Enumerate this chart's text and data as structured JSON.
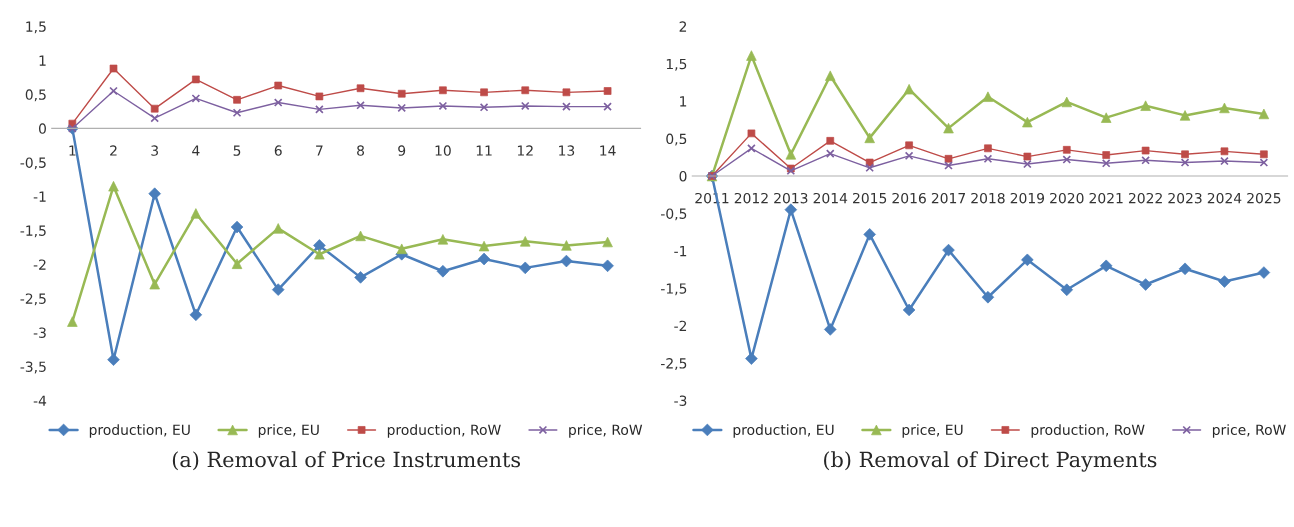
{
  "chart_data": [
    {
      "type": "line",
      "title": "(a) Removal of Price Instruments",
      "categories": [
        "1",
        "2",
        "3",
        "4",
        "5",
        "6",
        "7",
        "8",
        "9",
        "10",
        "11",
        "12",
        "13",
        "14"
      ],
      "ylim": [
        -4,
        1.5
      ],
      "yticks": [
        {
          "value": -4,
          "label": "-4"
        },
        {
          "value": -3.5,
          "label": "-3,5"
        },
        {
          "value": -3,
          "label": "-3"
        },
        {
          "value": -2.5,
          "label": "-2,5"
        },
        {
          "value": -2,
          "label": "-2"
        },
        {
          "value": -1.5,
          "label": "-1,5"
        },
        {
          "value": -1,
          "label": "-1"
        },
        {
          "value": -0.5,
          "label": "-0,5"
        },
        {
          "value": 0,
          "label": "0"
        },
        {
          "value": 0.5,
          "label": "0,5"
        },
        {
          "value": 1,
          "label": "1"
        },
        {
          "value": 1.5,
          "label": "1,5"
        }
      ],
      "grid": false,
      "legend": "bottom",
      "series": [
        {
          "name": "production, EU",
          "color": "#4a7ebb",
          "marker": "diamond",
          "values": [
            0,
            -3.4,
            -0.96,
            -2.74,
            -1.45,
            -2.37,
            -1.72,
            -2.19,
            -1.85,
            -2.1,
            -1.92,
            -2.05,
            -1.95,
            -2.02
          ]
        },
        {
          "name": "price, EU",
          "color": "#98b954",
          "marker": "triangle",
          "values": [
            -2.84,
            -0.85,
            -2.29,
            -1.25,
            -1.99,
            -1.47,
            -1.85,
            -1.58,
            -1.77,
            -1.63,
            -1.73,
            -1.66,
            -1.72,
            -1.67
          ]
        },
        {
          "name": "production, RoW",
          "color": "#be4b48",
          "marker": "square",
          "values": [
            0.07,
            0.88,
            0.29,
            0.72,
            0.42,
            0.63,
            0.47,
            0.59,
            0.51,
            0.56,
            0.53,
            0.56,
            0.53,
            0.55
          ]
        },
        {
          "name": "price, RoW",
          "color": "#7d60a0",
          "marker": "cross",
          "values": [
            0.0,
            0.55,
            0.15,
            0.44,
            0.23,
            0.38,
            0.28,
            0.34,
            0.3,
            0.33,
            0.31,
            0.33,
            0.32,
            0.32
          ]
        }
      ]
    },
    {
      "type": "line",
      "title": "(b) Removal of Direct Payments",
      "categories": [
        "2011",
        "2012",
        "2013",
        "2014",
        "2015",
        "2016",
        "2017",
        "2018",
        "2019",
        "2020",
        "2021",
        "2022",
        "2023",
        "2024",
        "2025"
      ],
      "ylim": [
        -3,
        2
      ],
      "yticks": [
        {
          "value": -3,
          "label": "-3"
        },
        {
          "value": -2.5,
          "label": "-2,5"
        },
        {
          "value": -2,
          "label": "-2"
        },
        {
          "value": -1.5,
          "label": "-1,5"
        },
        {
          "value": -1,
          "label": "-1"
        },
        {
          "value": -0.5,
          "label": "-0,5"
        },
        {
          "value": 0,
          "label": "0"
        },
        {
          "value": 0.5,
          "label": "0,5"
        },
        {
          "value": 1,
          "label": "1"
        },
        {
          "value": 1.5,
          "label": "1,5"
        },
        {
          "value": 2,
          "label": "2"
        }
      ],
      "grid": false,
      "legend": "bottom",
      "series": [
        {
          "name": "production, EU",
          "color": "#4a7ebb",
          "marker": "diamond",
          "values": [
            0,
            -2.44,
            -0.45,
            -2.05,
            -0.78,
            -1.79,
            -0.99,
            -1.62,
            -1.12,
            -1.52,
            -1.2,
            -1.45,
            -1.24,
            -1.41,
            -1.29
          ]
        },
        {
          "name": "price, EU",
          "color": "#98b954",
          "marker": "triangle",
          "values": [
            0,
            1.61,
            0.29,
            1.34,
            0.51,
            1.16,
            0.64,
            1.06,
            0.72,
            0.99,
            0.78,
            0.94,
            0.81,
            0.91,
            0.83
          ]
        },
        {
          "name": "production, RoW",
          "color": "#be4b48",
          "marker": "square",
          "values": [
            0,
            0.57,
            0.1,
            0.47,
            0.18,
            0.41,
            0.23,
            0.37,
            0.26,
            0.35,
            0.28,
            0.34,
            0.29,
            0.33,
            0.29
          ]
        },
        {
          "name": "price, RoW",
          "color": "#7d60a0",
          "marker": "cross",
          "values": [
            0,
            0.37,
            0.07,
            0.3,
            0.11,
            0.27,
            0.14,
            0.23,
            0.16,
            0.22,
            0.17,
            0.21,
            0.18,
            0.2,
            0.18
          ]
        }
      ]
    }
  ]
}
